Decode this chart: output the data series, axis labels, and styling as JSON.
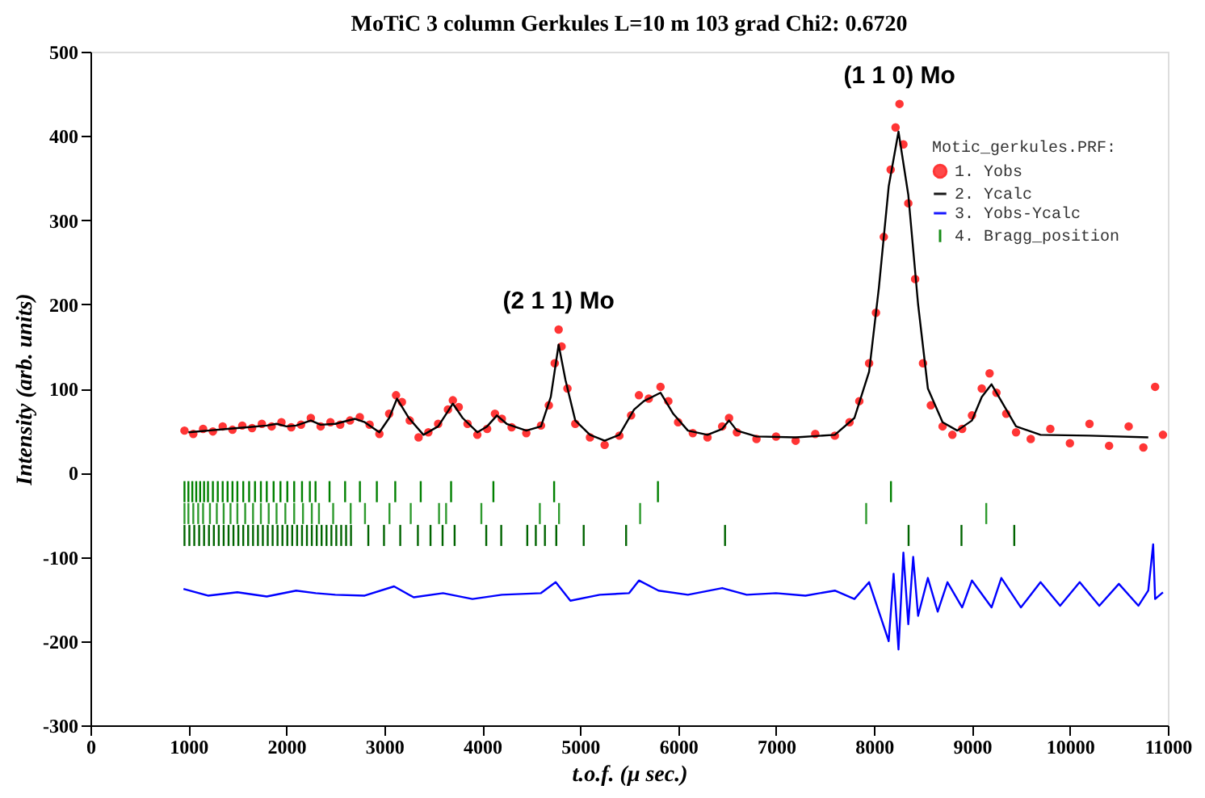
{
  "chart_data": {
    "type": "scatter",
    "title": "MoTiC 3 column Gerkules L=10 m 103 grad   Chi2:  0.6720",
    "xlabel": "t.o.f. (μ sec.)",
    "ylabel": "Intensity (arb. units)",
    "legend_title": "Motic_gerkules.PRF:",
    "xlim": [
      0,
      11000
    ],
    "xticks": [
      0,
      1000,
      2000,
      3000,
      4000,
      5000,
      6000,
      7000,
      8000,
      9000,
      10000,
      11000
    ],
    "ylim": [
      -300,
      500
    ],
    "yticks": [
      -300,
      -200,
      -100,
      0,
      100,
      200,
      300,
      400,
      500
    ],
    "grid": false,
    "legend": "top right",
    "annotations": [
      {
        "text": "(2 1 1) Mo",
        "x": 4780,
        "y": 170
      },
      {
        "text": "(1 1 0) Mo",
        "x": 8260,
        "y": 438
      }
    ],
    "series": [
      {
        "name": "1. Yobs",
        "marker": "circle",
        "color": "#ff2020",
        "x": [
          960,
          1050,
          1150,
          1250,
          1350,
          1450,
          1550,
          1650,
          1750,
          1850,
          1950,
          2050,
          2150,
          2250,
          2350,
          2450,
          2550,
          2650,
          2750,
          2850,
          2950,
          3050,
          3120,
          3180,
          3260,
          3350,
          3450,
          3550,
          3650,
          3700,
          3760,
          3850,
          3950,
          4050,
          4130,
          4200,
          4300,
          4450,
          4600,
          4680,
          4740,
          4780,
          4810,
          4870,
          4950,
          5100,
          5250,
          5400,
          5520,
          5600,
          5700,
          5820,
          5900,
          6000,
          6150,
          6300,
          6450,
          6520,
          6600,
          6800,
          7000,
          7200,
          7400,
          7600,
          7750,
          7850,
          7950,
          8020,
          8100,
          8170,
          8220,
          8260,
          8300,
          8350,
          8420,
          8500,
          8580,
          8700,
          8800,
          8900,
          9000,
          9100,
          9180,
          9250,
          9350,
          9450,
          9600,
          9800,
          10000,
          10200,
          10400,
          10600,
          10750,
          10870,
          10950
        ],
        "values": [
          50,
          46,
          52,
          49,
          55,
          51,
          56,
          53,
          58,
          55,
          60,
          54,
          57,
          65,
          55,
          60,
          57,
          62,
          66,
          57,
          46,
          70,
          92,
          84,
          62,
          42,
          48,
          58,
          75,
          86,
          78,
          58,
          45,
          52,
          70,
          64,
          54,
          47,
          56,
          80,
          130,
          170,
          150,
          100,
          58,
          42,
          33,
          44,
          68,
          92,
          88,
          102,
          85,
          60,
          47,
          42,
          55,
          65,
          48,
          40,
          43,
          38,
          46,
          44,
          60,
          85,
          130,
          190,
          280,
          360,
          410,
          438,
          390,
          320,
          230,
          130,
          80,
          55,
          45,
          52,
          68,
          100,
          118,
          95,
          70,
          48,
          40,
          52,
          35,
          58,
          32,
          55,
          30,
          102,
          45
        ]
      },
      {
        "name": "2. Ycalc",
        "type": "line",
        "color": "#000000",
        "x": [
          1000,
          1200,
          1400,
          1600,
          1800,
          1900,
          2000,
          2100,
          2250,
          2350,
          2500,
          2700,
          2800,
          2950,
          3050,
          3130,
          3250,
          3400,
          3550,
          3700,
          3800,
          3950,
          4050,
          4150,
          4250,
          4450,
          4600,
          4700,
          4780,
          4850,
          4950,
          5100,
          5250,
          5400,
          5550,
          5650,
          5820,
          5950,
          6100,
          6300,
          6450,
          6520,
          6600,
          6800,
          7200,
          7600,
          7800,
          7950,
          8050,
          8150,
          8250,
          8350,
          8450,
          8550,
          8700,
          8850,
          9000,
          9100,
          9200,
          9300,
          9450,
          9700,
          10200,
          10800
        ],
        "values": [
          48,
          50,
          52,
          54,
          56,
          58,
          55,
          56,
          62,
          57,
          58,
          64,
          60,
          48,
          65,
          88,
          65,
          45,
          55,
          82,
          65,
          48,
          55,
          68,
          58,
          50,
          55,
          90,
          152,
          110,
          62,
          45,
          38,
          45,
          75,
          85,
          95,
          70,
          50,
          45,
          52,
          62,
          50,
          43,
          42,
          45,
          65,
          120,
          220,
          340,
          405,
          330,
          200,
          100,
          60,
          50,
          62,
          90,
          105,
          85,
          55,
          45,
          44,
          42
        ]
      },
      {
        "name": "3. Yobs-Ycalc",
        "type": "line",
        "color": "#0000ff",
        "x": [
          950,
          1200,
          1500,
          1800,
          2100,
          2300,
          2500,
          2800,
          3100,
          3300,
          3600,
          3900,
          4200,
          4600,
          4750,
          4900,
          5200,
          5500,
          5600,
          5800,
          6100,
          6450,
          6700,
          7000,
          7300,
          7600,
          7800,
          7950,
          8050,
          8150,
          8200,
          8250,
          8300,
          8350,
          8400,
          8450,
          8550,
          8650,
          8750,
          8900,
          9000,
          9200,
          9300,
          9500,
          9700,
          9900,
          10100,
          10300,
          10500,
          10700,
          10800,
          10850,
          10870,
          10950
        ],
        "values": [
          -138,
          -146,
          -142,
          -147,
          -140,
          -143,
          -145,
          -146,
          -135,
          -148,
          -143,
          -150,
          -145,
          -143,
          -130,
          -152,
          -145,
          -143,
          -128,
          -140,
          -145,
          -137,
          -145,
          -143,
          -146,
          -140,
          -150,
          -130,
          -165,
          -200,
          -120,
          -210,
          -95,
          -180,
          -100,
          -170,
          -125,
          -165,
          -130,
          -160,
          -128,
          -160,
          -125,
          -160,
          -130,
          -158,
          -130,
          -158,
          -132,
          -158,
          -140,
          -85,
          -150,
          -142
        ]
      },
      {
        "name": "4. Bragg_position",
        "type": "bar",
        "color": "#008000",
        "x": [
          960,
          1000,
          1040,
          1080,
          1120,
          1160,
          1200,
          1250,
          1300,
          1350,
          1400,
          1450,
          1500,
          1560,
          1620,
          1680,
          1740,
          1800,
          1870,
          1940,
          2010,
          2080,
          2160,
          2240,
          2298,
          2441,
          2600,
          2751,
          2924,
          3112,
          3372,
          3682,
          4114,
          4734,
          5794,
          8173
        ],
        "base": [
          -35,
          -35,
          -35,
          -35,
          -35,
          -35,
          -35,
          -35,
          -35,
          -35,
          -35,
          -35,
          -35,
          -35,
          -35,
          -35,
          -35,
          -35,
          -35,
          -35,
          -35,
          -35,
          -35,
          -35,
          -35,
          -35,
          -35,
          -35,
          -35,
          -35,
          -35,
          -35,
          -35,
          -35,
          -35,
          -35
        ],
        "values": [
          25,
          25,
          25,
          25,
          25,
          25,
          25,
          25,
          25,
          25,
          25,
          25,
          25,
          25,
          25,
          25,
          25,
          25,
          25,
          25,
          25,
          25,
          25,
          25,
          25,
          25,
          25,
          25,
          25,
          25,
          25,
          25,
          25,
          25,
          25,
          25
        ]
      },
      {
        "type": "bar",
        "color": "#2e9a2e",
        "x": [
          960,
          1000,
          1050,
          1100,
          1150,
          1220,
          1290,
          1360,
          1430,
          1500,
          1580,
          1660,
          1740,
          1820,
          1900,
          1990,
          2080,
          2170,
          2260,
          2333,
          2478,
          2657,
          2803,
          3053,
          3270,
          3559,
          3631,
          3991,
          4588,
          4784,
          5612,
          7920,
          9146
        ],
        "base": [
          -61,
          -61,
          -61,
          -61,
          -61,
          -61,
          -61,
          -61,
          -61,
          -61,
          -61,
          -61,
          -61,
          -61,
          -61,
          -61,
          -61,
          -61,
          -61,
          -61,
          -61,
          -61,
          -61,
          -61,
          -61,
          -61,
          -61,
          -61,
          -61,
          -61,
          -61,
          -61,
          -61
        ],
        "values": [
          25,
          25,
          25,
          25,
          25,
          25,
          25,
          25,
          25,
          25,
          25,
          25,
          25,
          25,
          25,
          25,
          25,
          25,
          25,
          25,
          25,
          25,
          25,
          25,
          25,
          25,
          25,
          25,
          25,
          25,
          25,
          25,
          25
        ]
      },
      {
        "type": "bar",
        "color": "#006400",
        "x": [
          960,
          1010,
          1060,
          1110,
          1160,
          1210,
          1260,
          1310,
          1360,
          1410,
          1460,
          1510,
          1560,
          1610,
          1660,
          1710,
          1760,
          1810,
          1860,
          1910,
          1960,
          2010,
          2060,
          2110,
          2160,
          2210,
          2260,
          2310,
          2360,
          2410,
          2460,
          2510,
          2560,
          2610,
          2660,
          2837,
          2997,
          3163,
          3343,
          3472,
          3595,
          3718,
          4041,
          4194,
          4460,
          4547,
          4640,
          4756,
          5036,
          5469,
          6479,
          8353,
          8893,
          9432
        ],
        "base": [
          -87,
          -87,
          -87,
          -87,
          -87,
          -87,
          -87,
          -87,
          -87,
          -87,
          -87,
          -87,
          -87,
          -87,
          -87,
          -87,
          -87,
          -87,
          -87,
          -87,
          -87,
          -87,
          -87,
          -87,
          -87,
          -87,
          -87,
          -87,
          -87,
          -87,
          -87,
          -87,
          -87,
          -87,
          -87,
          -87,
          -87,
          -87,
          -87,
          -87,
          -87,
          -87,
          -87,
          -87,
          -87,
          -87,
          -87,
          -87,
          -87,
          -87,
          -87,
          -87,
          -87,
          -87
        ],
        "values": [
          25,
          25,
          25,
          25,
          25,
          25,
          25,
          25,
          25,
          25,
          25,
          25,
          25,
          25,
          25,
          25,
          25,
          25,
          25,
          25,
          25,
          25,
          25,
          25,
          25,
          25,
          25,
          25,
          25,
          25,
          25,
          25,
          25,
          25,
          25,
          25,
          25,
          25,
          25,
          25,
          25,
          25,
          25,
          25,
          25,
          25,
          25,
          25,
          25,
          25,
          25,
          25,
          25,
          25
        ]
      }
    ]
  }
}
